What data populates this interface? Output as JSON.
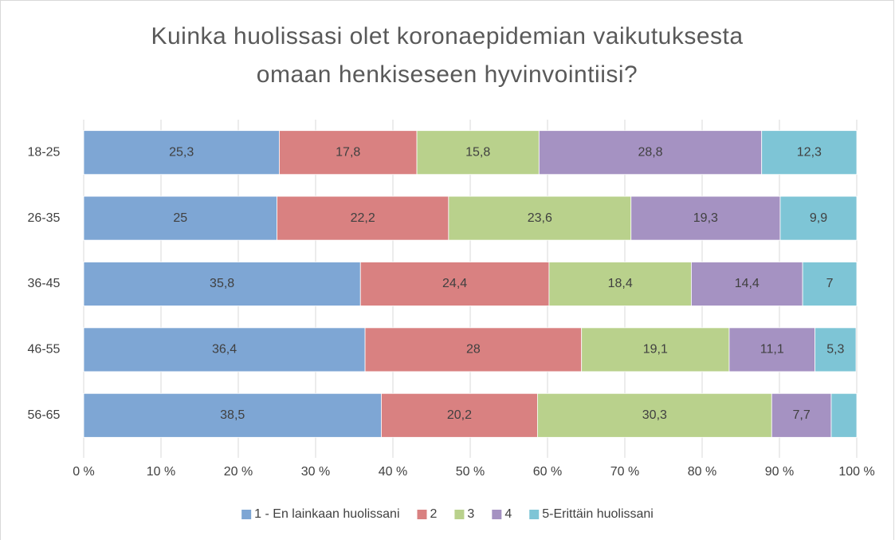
{
  "chart_data": {
    "type": "stacked-bar-horizontal",
    "title": "Kuinka huolissasi olet koronaepidemian vaikutuksesta omaan henkiseseen hyvinvointiisi?",
    "categories": [
      "18-25",
      "26-35",
      "36-45",
      "46-55",
      "56-65"
    ],
    "series": [
      {
        "name": "1 - En lainkaan huolissani",
        "color": "#7ea6d4",
        "values": [
          25.3,
          25,
          35.8,
          36.4,
          38.5
        ],
        "value_labels": [
          "25,3",
          "25",
          "35,8",
          "36,4",
          "38,5"
        ]
      },
      {
        "name": "2",
        "color": "#d98181",
        "values": [
          17.8,
          22.2,
          24.4,
          28,
          20.2
        ],
        "value_labels": [
          "17,8",
          "22,2",
          "24,4",
          "28",
          "20,2"
        ]
      },
      {
        "name": "3",
        "color": "#b9d18c",
        "values": [
          15.8,
          23.6,
          18.4,
          19.1,
          30.3
        ],
        "value_labels": [
          "15,8",
          "23,6",
          "18,4",
          "19,1",
          "30,3"
        ]
      },
      {
        "name": "4",
        "color": "#a592c2",
        "values": [
          28.8,
          19.3,
          14.4,
          11.1,
          7.7
        ],
        "value_labels": [
          "28,8",
          "19,3",
          "14,4",
          "11,1",
          "7,7"
        ]
      },
      {
        "name": "5-Erittäin huolissani",
        "color": "#7ec5d6",
        "values": [
          12.3,
          9.9,
          7,
          5.3,
          3.3
        ],
        "value_labels": [
          "12,3",
          "9,9",
          "7",
          "5,3",
          null
        ]
      }
    ],
    "xlim": [
      0,
      100
    ],
    "xticks": [
      {
        "value": 0,
        "label": "0 %"
      },
      {
        "value": 10,
        "label": "10 %"
      },
      {
        "value": 20,
        "label": "20 %"
      },
      {
        "value": 30,
        "label": "30 %"
      },
      {
        "value": 40,
        "label": "40 %"
      },
      {
        "value": 50,
        "label": "50 %"
      },
      {
        "value": 60,
        "label": "60 %"
      },
      {
        "value": 70,
        "label": "70 %"
      },
      {
        "value": 80,
        "label": "80 %"
      },
      {
        "value": 90,
        "label": "90 %"
      },
      {
        "value": 100,
        "label": "100 %"
      }
    ],
    "grid": true,
    "legend": "bottom"
  }
}
